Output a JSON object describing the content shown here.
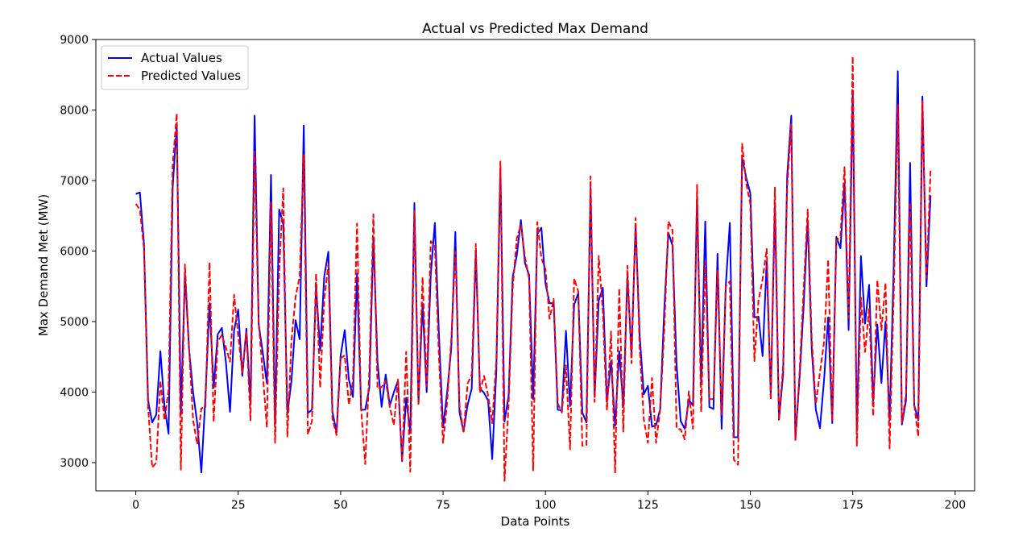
{
  "chart_data": {
    "type": "line",
    "title": "Actual vs Predicted Max Demand",
    "xlabel": "Data Points",
    "ylabel": "Max Demand Met (MW)",
    "xlim": [
      -9.75,
      204.75
    ],
    "ylim": [
      2600,
      9000
    ],
    "xticks": [
      0,
      25,
      50,
      75,
      100,
      125,
      150,
      175,
      200
    ],
    "yticks": [
      3000,
      4000,
      5000,
      6000,
      7000,
      8000,
      9000
    ],
    "grid": false,
    "legend_position": "top-left",
    "series": [
      {
        "name": "Actual Values",
        "color": "#0000ff",
        "style": "solid",
        "values": [
          6810,
          6830,
          6100,
          3880,
          3570,
          3680,
          4580,
          3800,
          3410,
          6900,
          7800,
          3680,
          5680,
          4610,
          3990,
          3560,
          2860,
          3940,
          5260,
          4060,
          4820,
          4910,
          4420,
          3720,
          4880,
          5170,
          4230,
          4900,
          3830,
          7920,
          4960,
          4560,
          4120,
          7080,
          3550,
          6590,
          6380,
          3690,
          4160,
          5020,
          4750,
          7780,
          3700,
          3750,
          5500,
          4590,
          5640,
          5990,
          3720,
          3430,
          4520,
          4880,
          4180,
          3930,
          5680,
          3750,
          3750,
          4060,
          6190,
          4430,
          3790,
          4250,
          3810,
          4000,
          4160,
          3020,
          3920,
          3420,
          6680,
          3850,
          5260,
          4000,
          5670,
          6400,
          4810,
          3500,
          4000,
          4620,
          6270,
          3720,
          3440,
          3820,
          4050,
          5990,
          4050,
          3990,
          3880,
          3050,
          4300,
          7180,
          3580,
          3950,
          5630,
          5940,
          6440,
          5830,
          5660,
          3900,
          6240,
          6330,
          5540,
          5260,
          5260,
          3750,
          3740,
          4870,
          3800,
          5240,
          5400,
          3710,
          3570,
          6890,
          3930,
          5300,
          5480,
          3860,
          4440,
          3520,
          4580,
          3800,
          5640,
          4550,
          6370,
          4800,
          3970,
          4090,
          3510,
          3530,
          3760,
          5180,
          6260,
          6080,
          4390,
          3590,
          3480,
          3890,
          3810,
          6760,
          4120,
          6420,
          3790,
          3760,
          5960,
          3480,
          5500,
          6400,
          3360,
          3360,
          7320,
          7040,
          6820,
          5060,
          5070,
          4510,
          5850,
          3950,
          6650,
          3610,
          4250,
          7060,
          7920,
          3330,
          4180,
          5200,
          6440,
          4600,
          3750,
          3490,
          4170,
          5060,
          3560,
          6200,
          6040,
          6960,
          4880,
          8280,
          3450,
          5930,
          4970,
          5520,
          3880,
          4960,
          4130,
          5000,
          3600,
          5770,
          8550,
          3540,
          3880,
          7250,
          3820,
          3600,
          8190,
          5500,
          6790
        ]
      },
      {
        "name": "Predicted Values",
        "color": "#ff0000",
        "style": "dashed",
        "values": [
          6670,
          6590,
          6030,
          3800,
          2930,
          3000,
          4160,
          3600,
          4030,
          7220,
          7950,
          2900,
          5810,
          4620,
          3600,
          3260,
          3770,
          3790,
          5840,
          3580,
          4720,
          4810,
          4630,
          4430,
          5380,
          4800,
          4280,
          4850,
          3600,
          7410,
          4980,
          4260,
          3500,
          6700,
          3280,
          5710,
          6890,
          3370,
          4730,
          5350,
          5640,
          7360,
          3400,
          3590,
          5680,
          4060,
          5320,
          5810,
          3620,
          3390,
          4480,
          4520,
          3820,
          4160,
          6390,
          3760,
          2980,
          4300,
          6520,
          4050,
          4070,
          4160,
          3790,
          3530,
          4180,
          3020,
          4570,
          2870,
          6570,
          3810,
          5630,
          4080,
          6140,
          6080,
          4490,
          3280,
          3860,
          4740,
          5990,
          3820,
          3420,
          4120,
          4250,
          6100,
          3990,
          4230,
          3950,
          3560,
          4450,
          7270,
          2740,
          3820,
          5480,
          6180,
          6370,
          5910,
          5610,
          2890,
          6410,
          5900,
          5740,
          5040,
          5320,
          3840,
          3710,
          4380,
          3190,
          5610,
          5430,
          3240,
          3250,
          7060,
          3860,
          5930,
          5140,
          3740,
          4860,
          2860,
          5470,
          3440,
          5790,
          4410,
          6470,
          4620,
          3610,
          3280,
          4200,
          3280,
          3760,
          4880,
          6420,
          6300,
          3490,
          3470,
          3330,
          4010,
          3480,
          6940,
          3720,
          5840,
          3900,
          3900,
          5720,
          3680,
          5500,
          5570,
          3040,
          2970,
          7520,
          6960,
          6670,
          4440,
          5300,
          5600,
          6030,
          3890,
          6900,
          3610,
          4360,
          6910,
          7810,
          3320,
          4260,
          5440,
          6590,
          4740,
          3830,
          4280,
          4710,
          5880,
          3590,
          6140,
          6220,
          7190,
          5050,
          8760,
          3240,
          5340,
          4570,
          5180,
          3660,
          5590,
          4880,
          5550,
          3200,
          5370,
          8070,
          3570,
          3960,
          6690,
          3820,
          3370,
          8120,
          5620,
          7140
        ]
      }
    ]
  }
}
